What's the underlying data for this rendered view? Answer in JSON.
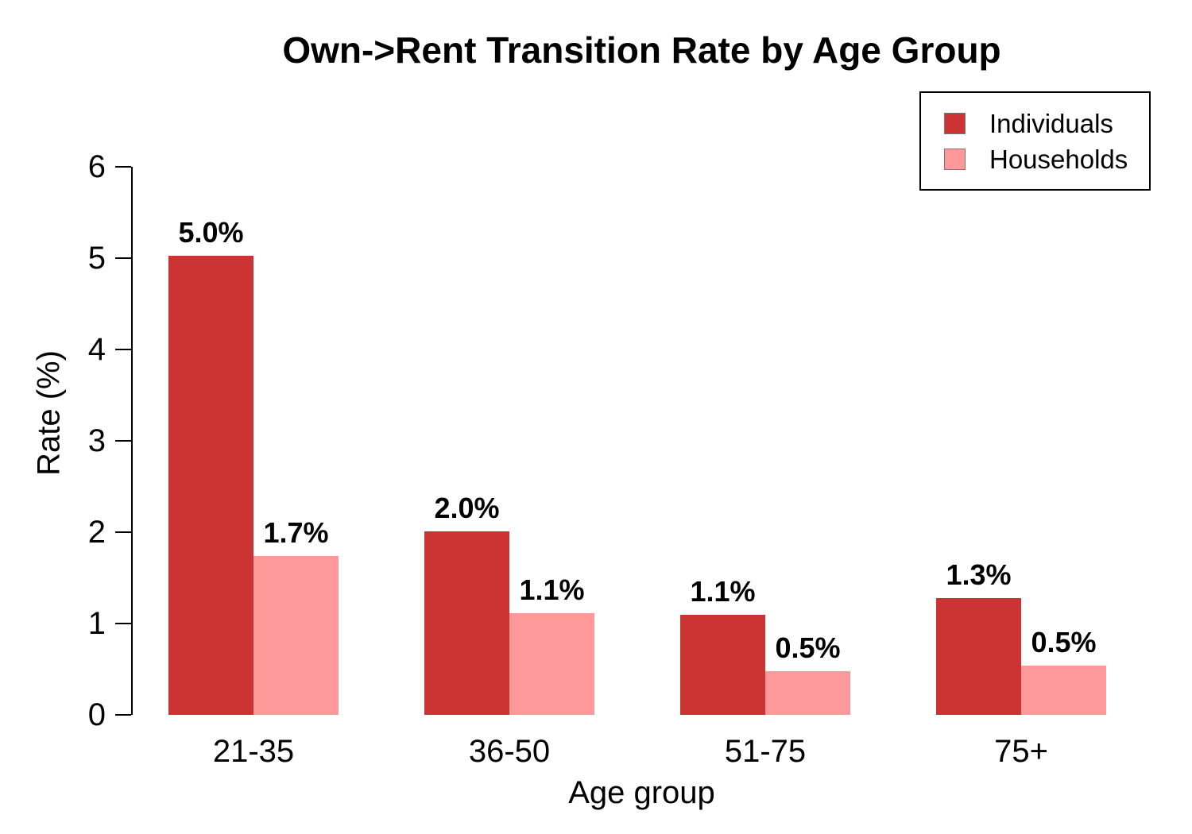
{
  "chart_data": {
    "type": "bar",
    "title": "Own->Rent Transition Rate by Age Group",
    "xlabel": "Age group",
    "ylabel": "Rate (%)",
    "ylim": [
      0,
      6
    ],
    "yticks": [
      0,
      1,
      2,
      3,
      4,
      5,
      6
    ],
    "categories": [
      "21-35",
      "36-50",
      "51-75",
      "75+"
    ],
    "series": [
      {
        "name": "Individuals",
        "color": "#CC3333",
        "values": [
          5.03,
          2.01,
          1.1,
          1.28
        ],
        "labels": [
          "5.0%",
          "2.0%",
          "1.1%",
          "1.3%"
        ]
      },
      {
        "name": "Households",
        "color": "#FF9999",
        "values": [
          1.74,
          1.11,
          0.48,
          0.54
        ],
        "labels": [
          "1.7%",
          "1.1%",
          "0.5%",
          "0.5%"
        ]
      }
    ],
    "legend": {
      "position": "top-right",
      "entries": [
        "Individuals",
        "Households"
      ]
    },
    "grid": false
  }
}
